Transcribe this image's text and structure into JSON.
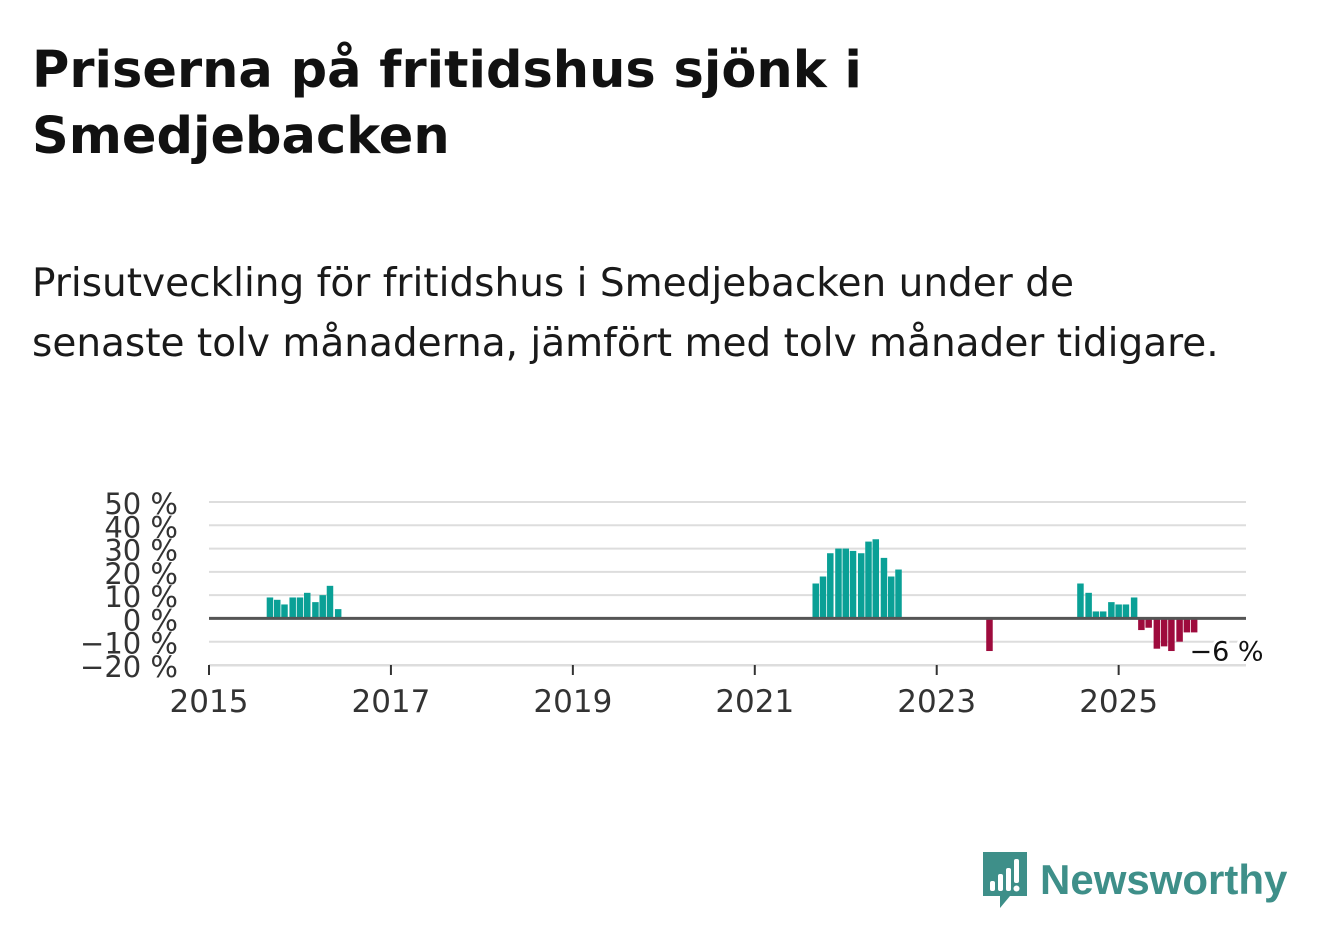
{
  "title": "Priserna på fritidshus sjönk i Smedjebacken",
  "subtitle": "Prisutveckling för fritidshus i Smedjebacken under de senaste tolv månaderna, jämfört med tolv månader tidigare.",
  "brand": {
    "name": "Newsworthy",
    "icon": "newsworthy-logo-icon",
    "color": "#3e8f89"
  },
  "colors": {
    "positive": "#0aa096",
    "negative": "#9e0b3d",
    "grid": "#dddddd",
    "zero_line": "#555555"
  },
  "chart_data": {
    "type": "bar",
    "title": "Priserna på fritidshus sjönk i Smedjebacken",
    "xlabel": "",
    "ylabel": "",
    "x_ticks": [
      "2015",
      "2017",
      "2019",
      "2021",
      "2023",
      "2025"
    ],
    "y_ticks": [
      "−20 %",
      "−10 %",
      "0 %",
      "10 %",
      "20 %",
      "30 %",
      "40 %",
      "50 %"
    ],
    "ylim": [
      -20,
      50
    ],
    "xlim": [
      2015.0,
      2026.4
    ],
    "annotation": {
      "text": "−6 %",
      "x": 2025.79,
      "y": -6
    },
    "series": [
      {
        "name": "Prisutveckling",
        "points": [
          {
            "x": 2015.67,
            "y": 9
          },
          {
            "x": 2015.75,
            "y": 8
          },
          {
            "x": 2015.83,
            "y": 6
          },
          {
            "x": 2015.92,
            "y": 9
          },
          {
            "x": 2016.0,
            "y": 9
          },
          {
            "x": 2016.08,
            "y": 11
          },
          {
            "x": 2016.17,
            "y": 7
          },
          {
            "x": 2016.25,
            "y": 10
          },
          {
            "x": 2016.33,
            "y": 14
          },
          {
            "x": 2016.42,
            "y": 4
          },
          {
            "x": 2021.67,
            "y": 15
          },
          {
            "x": 2021.75,
            "y": 18
          },
          {
            "x": 2021.83,
            "y": 28
          },
          {
            "x": 2021.92,
            "y": 30
          },
          {
            "x": 2022.0,
            "y": 30
          },
          {
            "x": 2022.08,
            "y": 29
          },
          {
            "x": 2022.17,
            "y": 28
          },
          {
            "x": 2022.25,
            "y": 33
          },
          {
            "x": 2022.33,
            "y": 34
          },
          {
            "x": 2022.42,
            "y": 26
          },
          {
            "x": 2022.5,
            "y": 18
          },
          {
            "x": 2022.58,
            "y": 21
          },
          {
            "x": 2023.58,
            "y": -14
          },
          {
            "x": 2024.58,
            "y": 15
          },
          {
            "x": 2024.67,
            "y": 11
          },
          {
            "x": 2024.75,
            "y": 3
          },
          {
            "x": 2024.83,
            "y": 3
          },
          {
            "x": 2024.92,
            "y": 7
          },
          {
            "x": 2025.0,
            "y": 6
          },
          {
            "x": 2025.08,
            "y": 6
          },
          {
            "x": 2025.17,
            "y": 9
          },
          {
            "x": 2025.25,
            "y": -5
          },
          {
            "x": 2025.33,
            "y": -4
          },
          {
            "x": 2025.42,
            "y": -13
          },
          {
            "x": 2025.5,
            "y": -12
          },
          {
            "x": 2025.58,
            "y": -14
          },
          {
            "x": 2025.67,
            "y": -10
          },
          {
            "x": 2025.75,
            "y": -6
          },
          {
            "x": 2025.83,
            "y": -6
          }
        ]
      }
    ]
  }
}
